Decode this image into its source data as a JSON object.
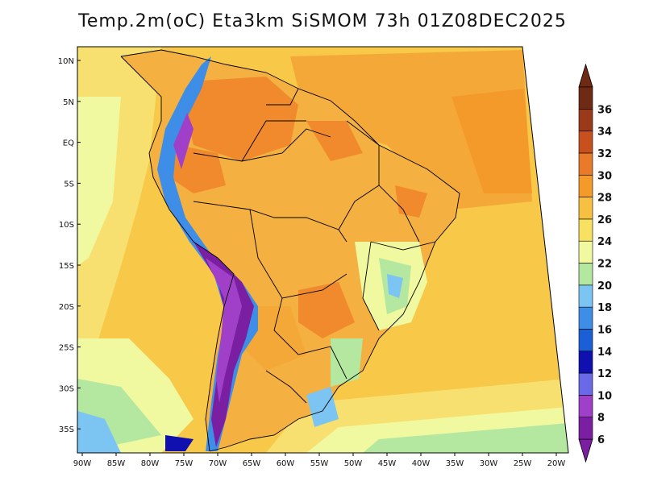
{
  "title": "Temp.2m(oC) Eta3km SiSMOM 73h 01Z08DEC2025",
  "map": {
    "lat_labels": [
      "10N",
      "5N",
      "EQ",
      "5S",
      "10S",
      "15S",
      "20S",
      "25S",
      "30S",
      "35S"
    ],
    "lon_labels": [
      "90W",
      "85W",
      "80W",
      "75W",
      "70W",
      "65W",
      "60W",
      "55W",
      "50W",
      "45W",
      "40W",
      "35W",
      "30W",
      "25W",
      "20W"
    ],
    "region": "South America"
  },
  "colorbar": {
    "labels": [
      "6",
      "8",
      "10",
      "12",
      "14",
      "16",
      "18",
      "20",
      "22",
      "24",
      "26",
      "28",
      "30",
      "32",
      "34",
      "36"
    ],
    "colors": [
      "#7a1fa2",
      "#a040c8",
      "#6a6ae8",
      "#1010b0",
      "#1a5fd6",
      "#3e8ee8",
      "#7cc4f2",
      "#b4e8a0",
      "#f0f8a0",
      "#f8e060",
      "#f8c040",
      "#f49a2a",
      "#e87a2a",
      "#c8501e",
      "#9a3a1a",
      "#6e2a12"
    ]
  }
}
